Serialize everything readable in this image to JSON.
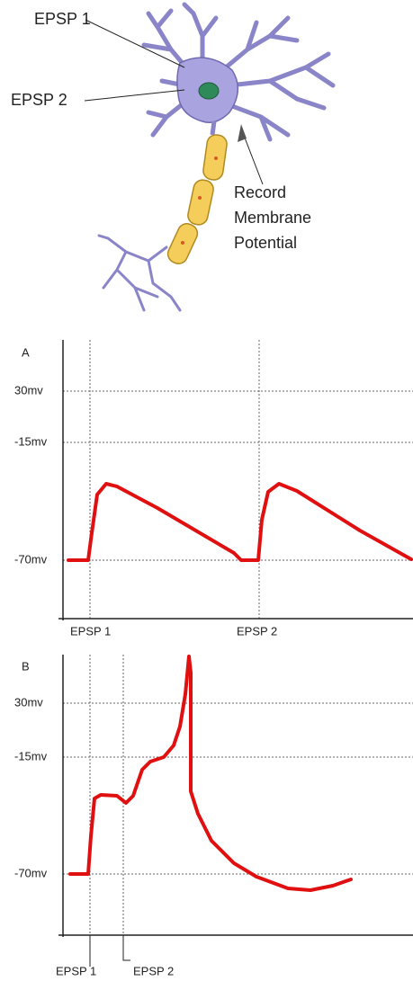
{
  "neuron": {
    "epsp1_label": "EPSP 1",
    "epsp2_label": "EPSP 2",
    "record_label": [
      "Record",
      "Membrane",
      "Potential"
    ]
  },
  "panels": [
    {
      "label": "A",
      "y_labels": [
        "30mv",
        "-15mv",
        "-70mv"
      ],
      "x_labels": [
        "EPSP 1",
        "EPSP 2"
      ]
    },
    {
      "label": "B",
      "y_labels": [
        "30mv",
        "-15mv",
        "-70mv"
      ],
      "x_labels": [
        "EPSP 1",
        "EPSP 2"
      ]
    }
  ]
}
